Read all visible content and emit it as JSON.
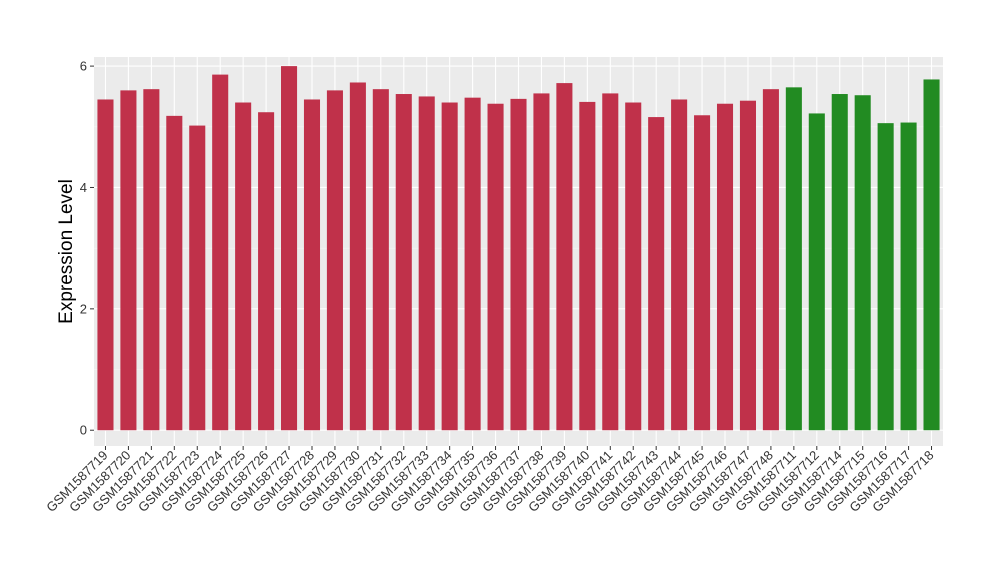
{
  "chart_data": {
    "type": "bar",
    "title": "",
    "xlabel": "",
    "ylabel": "Expression Level",
    "ylim": [
      -0.26,
      6.15
    ],
    "yticks": [
      0,
      2,
      4,
      6
    ],
    "grid": true,
    "legend": "none",
    "categories": [
      "GSM1587719",
      "GSM1587720",
      "GSM1587721",
      "GSM1587722",
      "GSM1587723",
      "GSM1587724",
      "GSM1587725",
      "GSM1587726",
      "GSM1587727",
      "GSM1587728",
      "GSM1587729",
      "GSM1587730",
      "GSM1587731",
      "GSM1587732",
      "GSM1587733",
      "GSM1587734",
      "GSM1587735",
      "GSM1587736",
      "GSM1587737",
      "GSM1587738",
      "GSM1587739",
      "GSM1587740",
      "GSM1587741",
      "GSM1587742",
      "GSM1587743",
      "GSM1587744",
      "GSM1587745",
      "GSM1587746",
      "GSM1587747",
      "GSM1587748",
      "GSM1587711",
      "GSM1587712",
      "GSM1587714",
      "GSM1587715",
      "GSM1587716",
      "GSM1587717",
      "GSM1587718"
    ],
    "values": [
      5.45,
      5.6,
      5.62,
      5.18,
      5.02,
      5.86,
      5.4,
      5.24,
      6.0,
      5.45,
      5.6,
      5.73,
      5.62,
      5.54,
      5.5,
      5.4,
      5.48,
      5.38,
      5.46,
      5.55,
      5.72,
      5.41,
      5.55,
      5.4,
      5.16,
      5.45,
      5.19,
      5.38,
      5.43,
      5.62,
      5.65,
      5.22,
      5.54,
      5.52,
      5.06,
      5.07,
      5.78
    ],
    "groups": [
      "a",
      "a",
      "a",
      "a",
      "a",
      "a",
      "a",
      "a",
      "a",
      "a",
      "a",
      "a",
      "a",
      "a",
      "a",
      "a",
      "a",
      "a",
      "a",
      "a",
      "a",
      "a",
      "a",
      "a",
      "a",
      "a",
      "a",
      "a",
      "a",
      "a",
      "b",
      "b",
      "b",
      "b",
      "b",
      "b",
      "b"
    ],
    "colors": {
      "a": "#c0314a",
      "b": "#228b22",
      "panel": "#ebebeb",
      "grid_major": "#ffffff",
      "grid_minor": "#f5f5f5"
    }
  }
}
